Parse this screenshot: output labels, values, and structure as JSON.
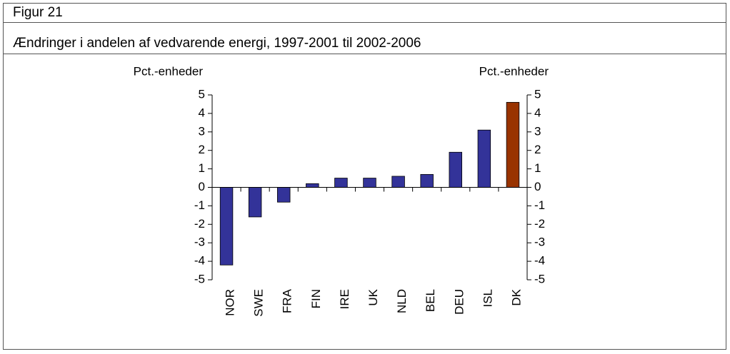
{
  "figure_label": "Figur 21",
  "chart_data": {
    "type": "bar",
    "title": "Ændringer i andelen af vedvarende energi, 1997-2001 til 2002-2006",
    "ylabel": "Pct.-enheder",
    "y2label": "Pct.-enheder",
    "categories": [
      "NOR",
      "SWE",
      "FRA",
      "FIN",
      "IRE",
      "UK",
      "NLD",
      "BEL",
      "DEU",
      "ISL",
      "DK"
    ],
    "values": [
      -4.2,
      -1.6,
      -0.8,
      0.2,
      0.5,
      0.5,
      0.6,
      0.7,
      1.9,
      3.1,
      4.6
    ],
    "colors": [
      "#333399",
      "#333399",
      "#333399",
      "#333399",
      "#333399",
      "#333399",
      "#333399",
      "#333399",
      "#333399",
      "#333399",
      "#993300"
    ],
    "ylim": [
      -5,
      5
    ],
    "yticks": [
      -5,
      -4,
      -3,
      -2,
      -1,
      0,
      1,
      2,
      3,
      4,
      5
    ],
    "y2lim": [
      -5,
      5
    ],
    "y2ticks": [
      -5,
      -4,
      -3,
      -2,
      -1,
      0,
      1,
      2,
      3,
      4,
      5
    ],
    "grid": false
  }
}
